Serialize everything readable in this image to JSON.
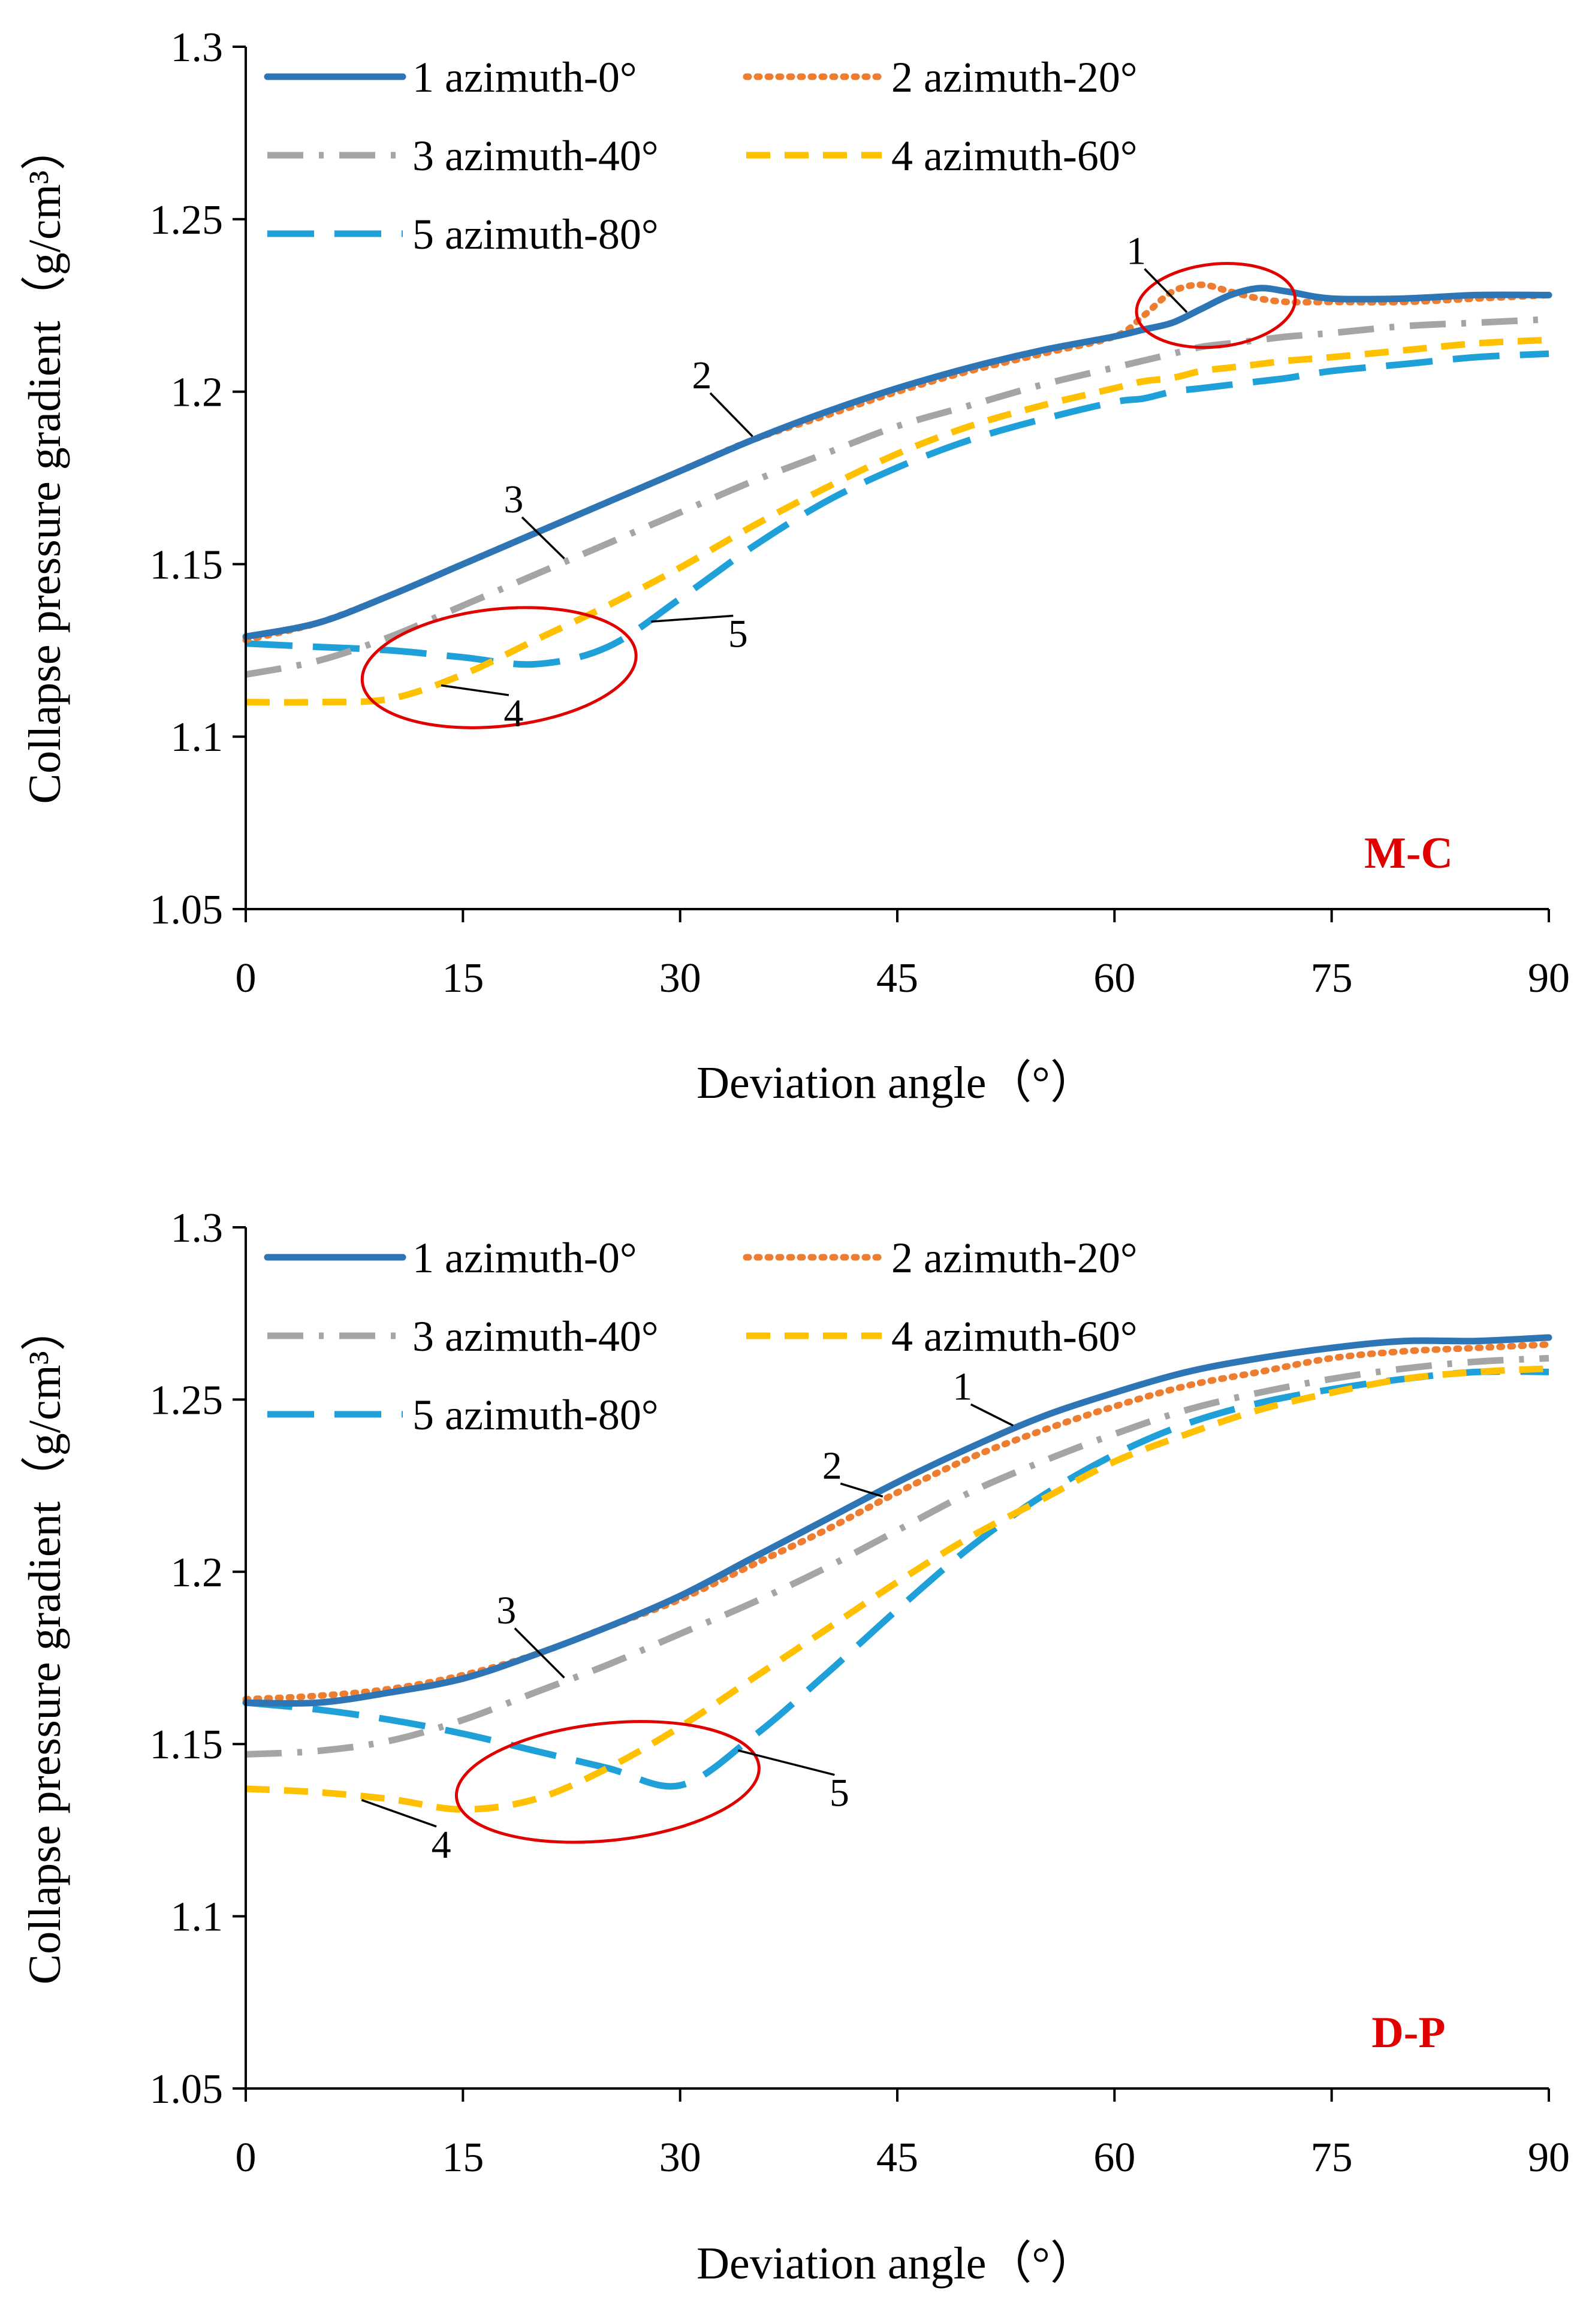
{
  "colors": {
    "azimuth_0": "#2E75B6",
    "azimuth_20": "#ED7D31",
    "azimuth_40": "#A5A5A5",
    "azimuth_60": "#FFC000",
    "azimuth_80": "#1FA0D8",
    "highlight": "#E00000",
    "panel_tag": "#E00000"
  },
  "chart_data": [
    {
      "type": "line",
      "panel_label": "M-C",
      "xlabel": "Deviation angle（°）",
      "ylabel": "Collapse pressure gradient（g/cm³）",
      "xlim": [
        0,
        90
      ],
      "ylim": [
        1.05,
        1.3
      ],
      "xticks": [
        "0",
        "15",
        "30",
        "45",
        "60",
        "75",
        "90"
      ],
      "yticks": [
        "1.05",
        "1.1",
        "1.15",
        "1.2",
        "1.25",
        "1.3"
      ],
      "legend_position": "top-left",
      "grid": false,
      "x": [
        0,
        5,
        10,
        15,
        20,
        25,
        30,
        35,
        40,
        45,
        50,
        55,
        60,
        62,
        64,
        66,
        68,
        70,
        72,
        75,
        80,
        85,
        90
      ],
      "series": [
        {
          "name": "1 azimuth-0°",
          "style": "solid",
          "values": [
            1.129,
            1.133,
            1.141,
            1.15,
            1.159,
            1.168,
            1.177,
            1.186,
            1.194,
            1.201,
            1.207,
            1.212,
            1.216,
            1.218,
            1.22,
            1.224,
            1.228,
            1.23,
            1.229,
            1.227,
            1.227,
            1.228,
            1.228
          ]
        },
        {
          "name": "2 azimuth-20°",
          "style": "dotted",
          "values": [
            1.128,
            1.133,
            1.141,
            1.15,
            1.159,
            1.168,
            1.177,
            1.186,
            1.193,
            1.2,
            1.206,
            1.211,
            1.216,
            1.222,
            1.229,
            1.231,
            1.229,
            1.227,
            1.226,
            1.226,
            1.226,
            1.227,
            1.228
          ]
        },
        {
          "name": "3 azimuth-40°",
          "style": "dashdot",
          "values": [
            1.118,
            1.122,
            1.129,
            1.138,
            1.147,
            1.156,
            1.165,
            1.174,
            1.182,
            1.19,
            1.196,
            1.202,
            1.207,
            1.209,
            1.211,
            1.213,
            1.214,
            1.215,
            1.216,
            1.217,
            1.219,
            1.22,
            1.221
          ]
        },
        {
          "name": "4 azimuth-60°",
          "style": "dashed",
          "values": [
            1.11,
            1.11,
            1.111,
            1.118,
            1.128,
            1.138,
            1.149,
            1.161,
            1.172,
            1.182,
            1.19,
            1.196,
            1.201,
            1.203,
            1.204,
            1.206,
            1.207,
            1.208,
            1.209,
            1.21,
            1.212,
            1.214,
            1.215
          ]
        },
        {
          "name": "5 azimuth-80°",
          "style": "longdash",
          "values": [
            1.127,
            1.126,
            1.125,
            1.123,
            1.121,
            1.126,
            1.14,
            1.155,
            1.168,
            1.178,
            1.186,
            1.192,
            1.197,
            1.198,
            1.2,
            1.201,
            1.202,
            1.203,
            1.204,
            1.206,
            1.208,
            1.21,
            1.211
          ]
        }
      ],
      "annotations": [
        {
          "text": "1",
          "series": "1 azimuth-0°",
          "at_x": 65,
          "label_x": 61.5,
          "label_y": 1.237
        },
        {
          "text": "2",
          "series": "2 azimuth-20°",
          "at_x": 35,
          "label_x": 31.5,
          "label_y": 1.201
        },
        {
          "text": "3",
          "series": "3 azimuth-40°",
          "at_x": 22,
          "label_x": 18.5,
          "label_y": 1.165
        },
        {
          "text": "4",
          "series": "4 azimuth-60°",
          "at_x": 13.5,
          "label_x": 18.5,
          "label_y": 1.103
        },
        {
          "text": "5",
          "series": "5 azimuth-80°",
          "at_x": 28,
          "label_x": 34,
          "label_y": 1.126
        }
      ],
      "highlights": [
        {
          "cx": 67.0,
          "cy": 1.225,
          "rx": 5.5,
          "ry": 0.012
        },
        {
          "cx": 17.5,
          "cy": 1.12,
          "rx": 9.5,
          "ry": 0.017
        }
      ]
    },
    {
      "type": "line",
      "panel_label": "D-P",
      "xlabel": "Deviation angle（°）",
      "ylabel": "Collapse pressure gradient（g/cm³）",
      "xlim": [
        0,
        90
      ],
      "ylim": [
        1.05,
        1.3
      ],
      "xticks": [
        "0",
        "15",
        "30",
        "45",
        "60",
        "75",
        "90"
      ],
      "yticks": [
        "1.05",
        "1.1",
        "1.15",
        "1.2",
        "1.25",
        "1.3"
      ],
      "legend_position": "top-left",
      "grid": false,
      "x": [
        0,
        5,
        10,
        15,
        20,
        25,
        30,
        35,
        40,
        45,
        50,
        55,
        60,
        65,
        70,
        75,
        80,
        85,
        90
      ],
      "series": [
        {
          "name": "1 azimuth-0°",
          "style": "solid",
          "values": [
            1.162,
            1.162,
            1.165,
            1.169,
            1.176,
            1.184,
            1.193,
            1.204,
            1.215,
            1.226,
            1.236,
            1.245,
            1.252,
            1.258,
            1.262,
            1.265,
            1.267,
            1.267,
            1.268
          ]
        },
        {
          "name": "2 azimuth-20°",
          "style": "dotted",
          "values": [
            1.163,
            1.164,
            1.166,
            1.17,
            1.176,
            1.184,
            1.192,
            1.202,
            1.212,
            1.223,
            1.233,
            1.241,
            1.248,
            1.254,
            1.258,
            1.262,
            1.264,
            1.265,
            1.266
          ]
        },
        {
          "name": "3 azimuth-40°",
          "style": "dashdot",
          "values": [
            1.147,
            1.148,
            1.151,
            1.157,
            1.165,
            1.173,
            1.182,
            1.191,
            1.201,
            1.212,
            1.223,
            1.232,
            1.24,
            1.247,
            1.252,
            1.256,
            1.259,
            1.261,
            1.262
          ]
        },
        {
          "name": "4 azimuth-60°",
          "style": "dashed",
          "values": [
            1.137,
            1.136,
            1.134,
            1.131,
            1.134,
            1.143,
            1.155,
            1.169,
            1.183,
            1.197,
            1.21,
            1.221,
            1.232,
            1.24,
            1.247,
            1.252,
            1.256,
            1.258,
            1.259
          ]
        },
        {
          "name": "5 azimuth-80°",
          "style": "longdash",
          "values": [
            1.162,
            1.16,
            1.157,
            1.153,
            1.148,
            1.143,
            1.138,
            1.152,
            1.17,
            1.189,
            1.207,
            1.222,
            1.234,
            1.243,
            1.249,
            1.253,
            1.256,
            1.258,
            1.258
          ]
        }
      ],
      "annotations": [
        {
          "text": "1",
          "series": "1 azimuth-0°",
          "at_x": 53,
          "label_x": 49.5,
          "label_y": 1.25
        },
        {
          "text": "2",
          "series": "2 azimuth-20°",
          "at_x": 44,
          "label_x": 40.5,
          "label_y": 1.227
        },
        {
          "text": "3",
          "series": "3 azimuth-40°",
          "at_x": 22,
          "label_x": 18,
          "label_y": 1.185
        },
        {
          "text": "4",
          "series": "4 azimuth-60°",
          "at_x": 8,
          "label_x": 13.5,
          "label_y": 1.117
        },
        {
          "text": "5",
          "series": "5 azimuth-80°",
          "at_x": 34,
          "label_x": 41,
          "label_y": 1.132
        }
      ],
      "highlights": [
        {
          "cx": 25.0,
          "cy": 1.139,
          "rx": 10.5,
          "ry": 0.017
        }
      ]
    }
  ]
}
